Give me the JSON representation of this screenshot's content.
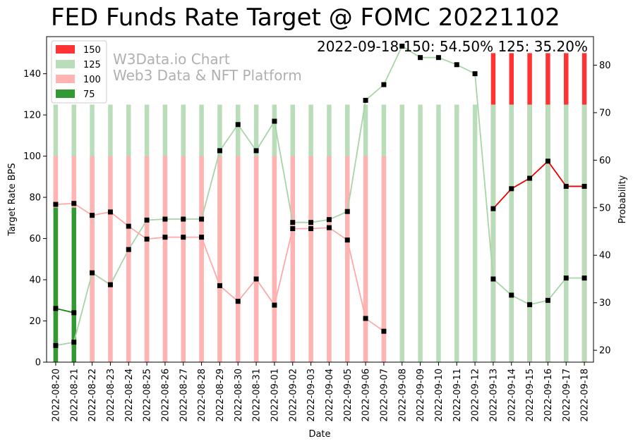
{
  "chart_data": {
    "type": "bar",
    "title": "FED Funds Rate Target @ FOMC 20221102",
    "annotation": "2022-09-18 150: 54.50% 125: 35.20%",
    "watermark": [
      "W3Data.io Chart",
      "Web3 Data & NFT Platform"
    ],
    "xlabel": "Date",
    "ylabel": "Target Rate BPS",
    "y2label": "Probability",
    "ylim": [
      0,
      158
    ],
    "y2lim": [
      17.5,
      86
    ],
    "yticks": [
      0,
      20,
      40,
      60,
      80,
      100,
      120,
      140
    ],
    "y2ticks": [
      20,
      30,
      40,
      50,
      60,
      70,
      80
    ],
    "dates": [
      "2022-08-20",
      "2022-08-21",
      "2022-08-22",
      "2022-08-23",
      "2022-08-24",
      "2022-08-25",
      "2022-08-26",
      "2022-08-27",
      "2022-08-28",
      "2022-08-29",
      "2022-08-30",
      "2022-08-31",
      "2022-09-01",
      "2022-09-02",
      "2022-09-03",
      "2022-09-04",
      "2022-09-05",
      "2022-09-06",
      "2022-09-07",
      "2022-09-08",
      "2022-09-09",
      "2022-09-10",
      "2022-09-11",
      "2022-09-12",
      "2022-09-13",
      "2022-09-14",
      "2022-09-15",
      "2022-09-16",
      "2022-09-17",
      "2022-09-18"
    ],
    "legend": [
      {
        "name": "150",
        "color": "#ff3333"
      },
      {
        "name": "125",
        "color": "#b8ddb8"
      },
      {
        "name": "100",
        "color": "#ffb3b3"
      },
      {
        "name": "75",
        "color": "#339933"
      }
    ],
    "bars": [
      {
        "name": "150",
        "color": "#ff3333",
        "value": 150,
        "days": [
          24,
          25,
          26,
          27,
          28,
          29
        ]
      },
      {
        "name": "125",
        "color": "#b8ddb8",
        "value": 125,
        "days": [
          0,
          1,
          2,
          3,
          4,
          5,
          6,
          7,
          8,
          9,
          10,
          11,
          12,
          13,
          14,
          15,
          16,
          17,
          18,
          19,
          20,
          21,
          22,
          23,
          24,
          25,
          26,
          27,
          28,
          29
        ]
      },
      {
        "name": "100",
        "color": "#ffb3b3",
        "value": 100,
        "days": [
          0,
          1,
          2,
          3,
          4,
          5,
          6,
          7,
          8,
          9,
          10,
          11,
          12,
          13,
          14,
          15,
          16,
          17,
          18
        ]
      },
      {
        "name": "75",
        "color": "#339933",
        "value": 75,
        "days": [
          0,
          1
        ]
      }
    ],
    "series": [
      {
        "name": "150",
        "color": "#ee0000",
        "values": [
          null,
          null,
          null,
          null,
          null,
          null,
          null,
          null,
          null,
          null,
          null,
          null,
          null,
          null,
          null,
          null,
          null,
          null,
          null,
          null,
          null,
          null,
          null,
          null,
          49.8,
          54.0,
          56.2,
          59.8,
          54.5,
          54.5
        ]
      },
      {
        "name": "125",
        "color": "#a8d5a8",
        "values": [
          21.0,
          21.7,
          36.3,
          33.8,
          41.2,
          47.4,
          47.6,
          47.6,
          47.6,
          62.0,
          67.5,
          62.0,
          68.2,
          46.9,
          46.9,
          47.5,
          49.2,
          72.6,
          75.9,
          84.0,
          81.6,
          81.6,
          80.1,
          78.2,
          35.0,
          31.6,
          29.6,
          30.5,
          35.2,
          35.2
        ]
      },
      {
        "name": "100",
        "color": "#ffaaaa",
        "values": [
          50.7,
          50.9,
          48.4,
          49.1,
          46.1,
          43.4,
          43.8,
          43.8,
          43.8,
          33.6,
          30.3,
          35.0,
          29.5,
          45.6,
          45.6,
          45.8,
          43.2,
          26.7,
          24.0,
          null,
          null,
          null,
          null,
          null,
          null,
          null,
          null,
          null,
          null,
          null
        ]
      },
      {
        "name": "75",
        "color": "#118811",
        "values": [
          28.8,
          27.9,
          null,
          null,
          null,
          null,
          null,
          null,
          null,
          null,
          null,
          null,
          null,
          null,
          null,
          null,
          null,
          null,
          null,
          null,
          null,
          null,
          null,
          null,
          null,
          null,
          null,
          null,
          null,
          null
        ]
      }
    ]
  }
}
